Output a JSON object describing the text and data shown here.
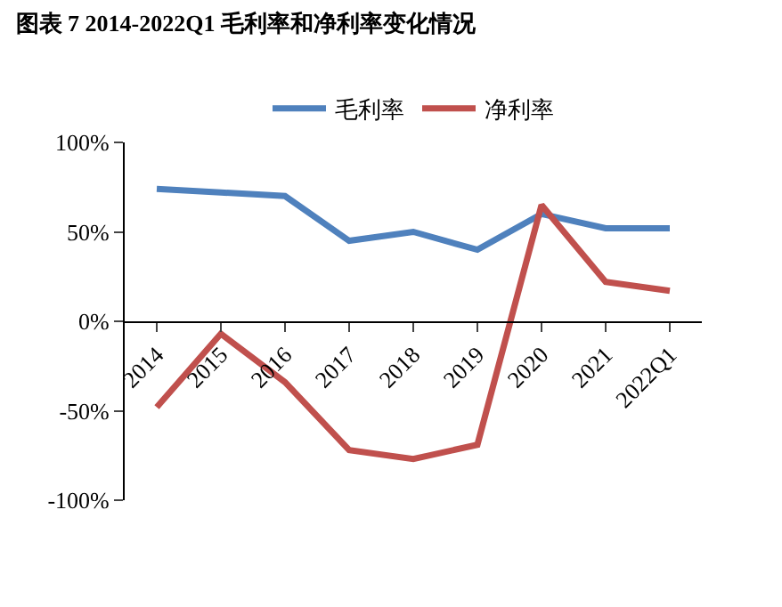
{
  "chart_data": {
    "type": "line",
    "title": "图表 7 2014-2022Q1 毛利率和净利率变化情况",
    "categories": [
      "2014",
      "2015",
      "2016",
      "2017",
      "2018",
      "2019",
      "2020",
      "2021",
      "2022Q1"
    ],
    "series": [
      {
        "name": "毛利率",
        "color": "#4f81bd",
        "values": [
          74,
          72,
          70,
          45,
          50,
          40,
          60,
          52,
          52
        ]
      },
      {
        "name": "净利率",
        "color": "#c0504d",
        "values": [
          -48,
          -7,
          -34,
          -72,
          -77,
          -69,
          65,
          22,
          17
        ]
      }
    ],
    "ylim": [
      -100,
      100
    ],
    "yticks": [
      {
        "value": -100,
        "label": "-100%"
      },
      {
        "value": -50,
        "label": "-50%"
      },
      {
        "value": 0,
        "label": "0%"
      },
      {
        "value": 50,
        "label": "50%"
      },
      {
        "value": 100,
        "label": "100%"
      }
    ],
    "legend": "top",
    "marker": "none",
    "line_style": "solid"
  }
}
